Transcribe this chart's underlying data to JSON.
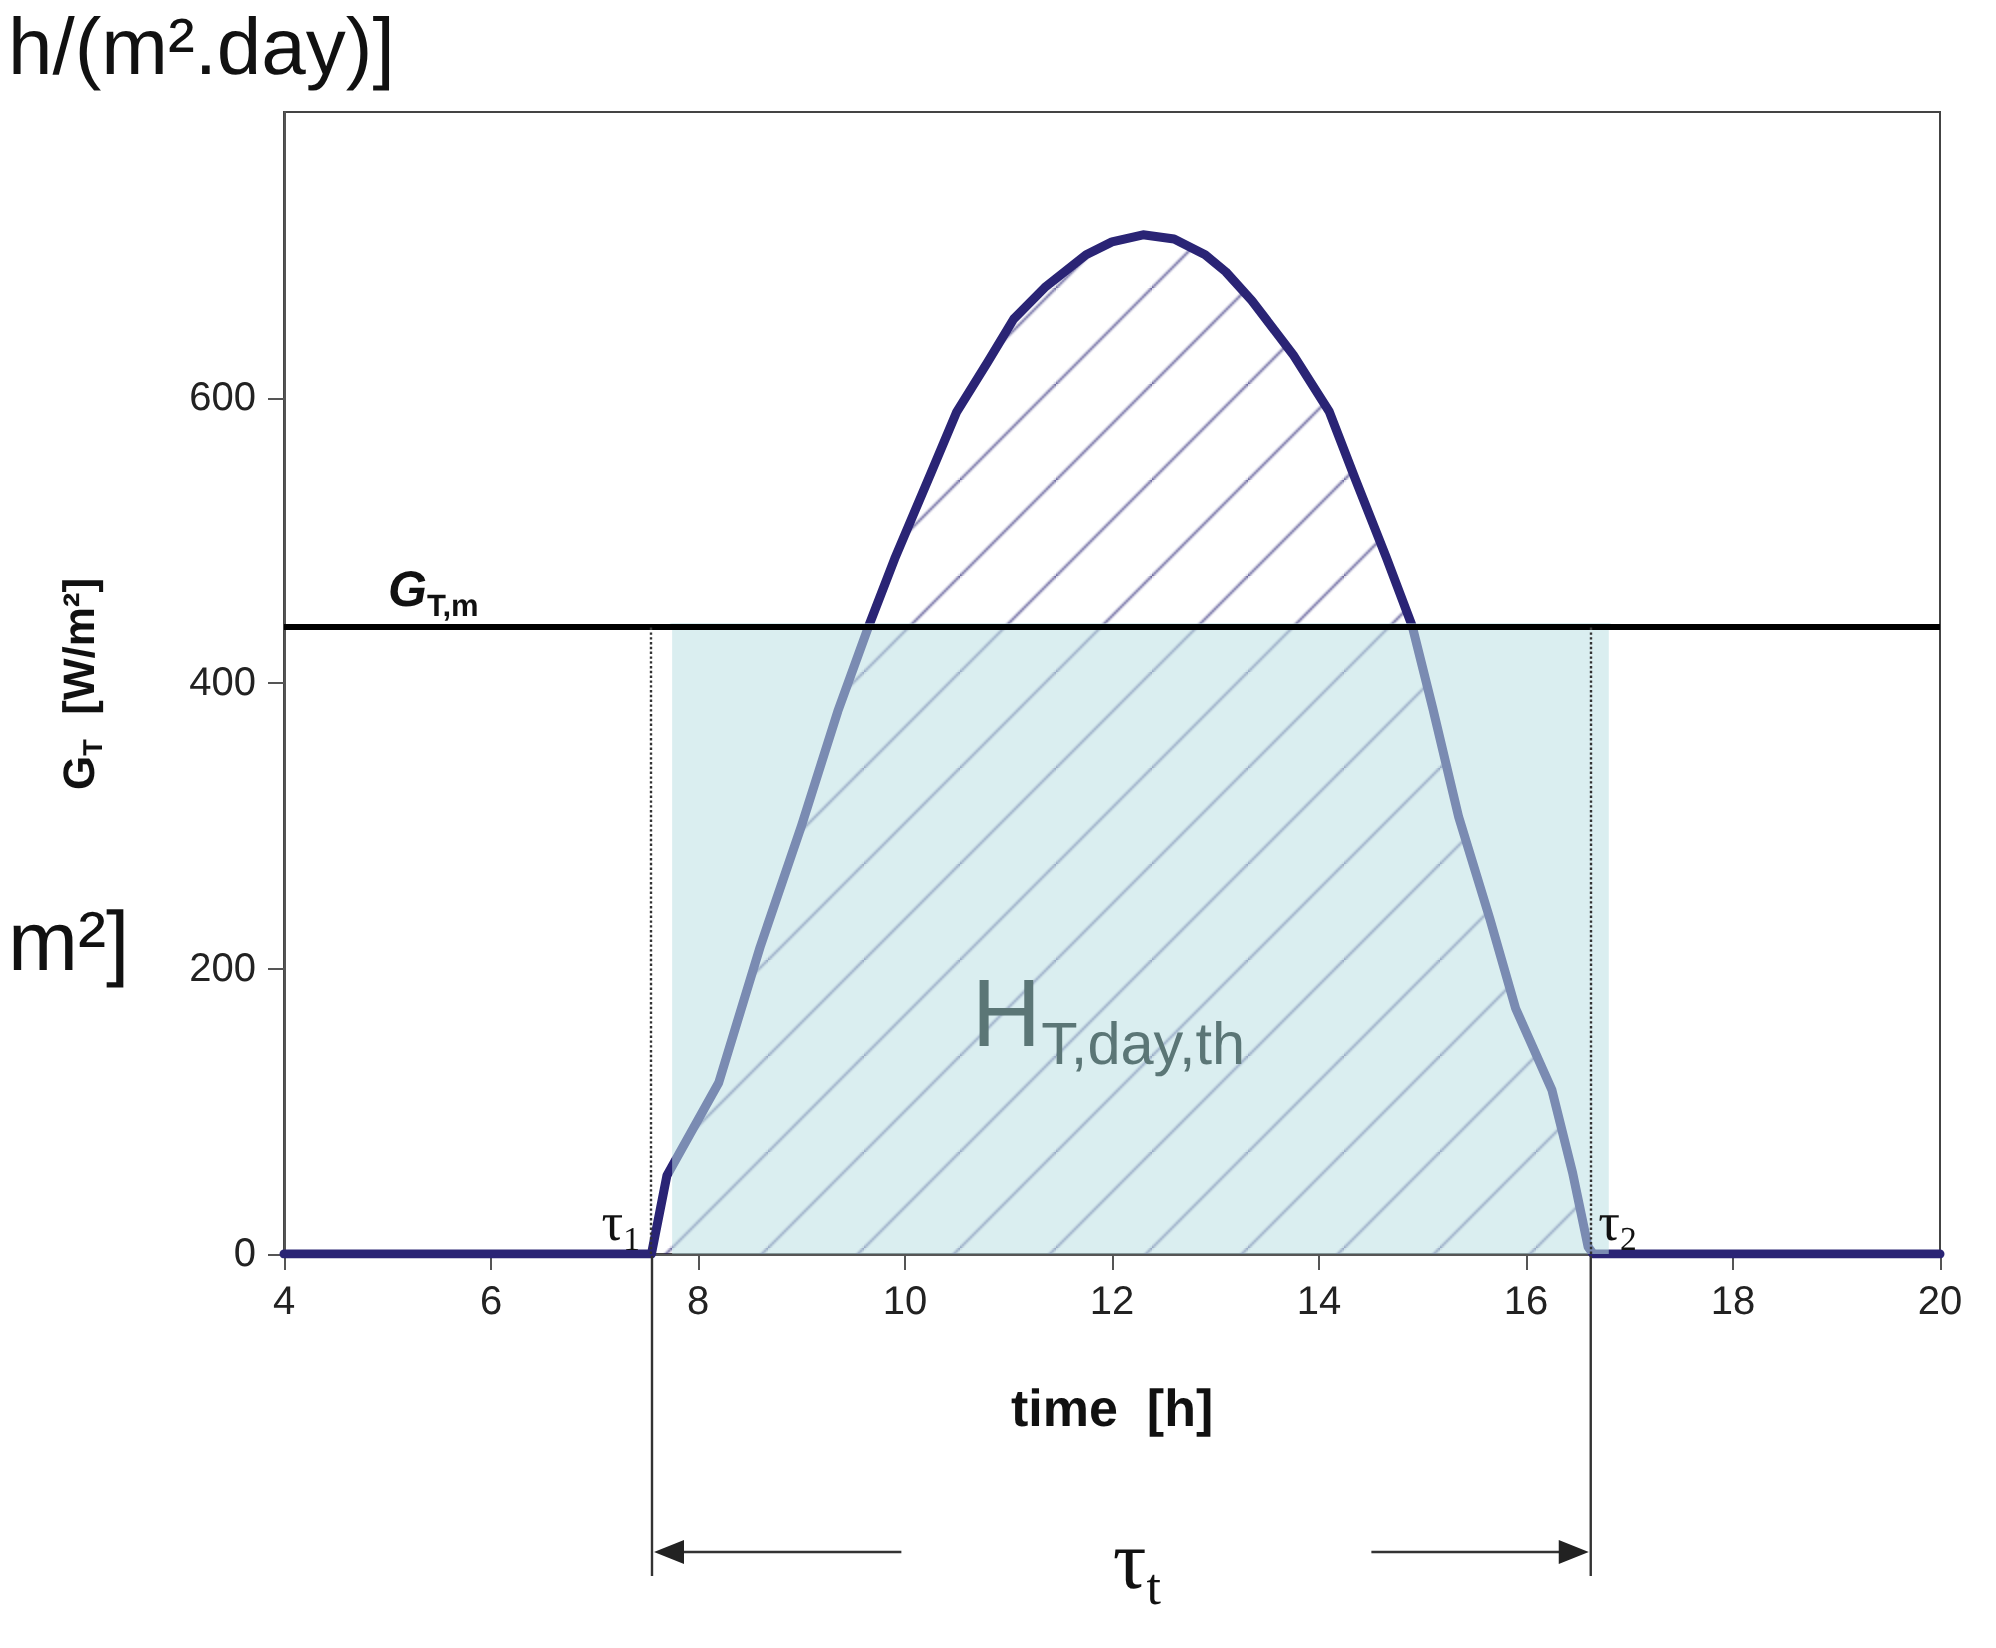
{
  "chart_data": {
    "type": "area",
    "xlabel": "time  [h]",
    "ylabel": "G$_{T}$  [W/m²]",
    "xlim": [
      4,
      20
    ],
    "xticks": [
      4,
      6,
      8,
      10,
      12,
      14,
      16,
      18,
      20
    ],
    "ylim": [
      0,
      800
    ],
    "yticks": [
      0,
      200,
      400,
      600
    ],
    "series": [
      {
        "color": "#2a2475",
        "x": [
          4,
          7.55,
          7.7,
          8.2,
          8.6,
          9.0,
          9.35,
          9.65,
          9.9,
          10.25,
          10.5,
          10.8,
          11.05,
          11.35,
          11.75,
          12.0,
          12.3,
          12.6,
          12.9,
          13.1,
          13.35,
          13.75,
          14.1,
          14.35,
          14.65,
          14.9,
          15.1,
          15.35,
          15.65,
          15.9,
          16.25,
          16.45,
          16.6,
          16.65,
          20
        ],
        "values": [
          0,
          0,
          55,
          120,
          215,
          300,
          380,
          440,
          487,
          547,
          590,
          625,
          655,
          677,
          700,
          709,
          714,
          711,
          700,
          688,
          668,
          630,
          590,
          543,
          488,
          440,
          382,
          306,
          235,
          172,
          115,
          57,
          5,
          0,
          0
        ]
      },
      {
        "color": "#daeef0",
        "x": [
          7.75,
          16.8
        ],
        "values": [
          440,
          440
        ]
      }
    ],
    "ref_lines": [
      {
        "axis": "y",
        "value": 440,
        "label": "G$_{T,m}$",
        "color": "#000000"
      },
      {
        "axis": "x",
        "value": 7.55,
        "label": "τ$_{1}$",
        "line_style": "dotted",
        "color": "#333333"
      },
      {
        "axis": "x",
        "value": 16.62,
        "label": "τ$_{2}$",
        "line_style": "dotted",
        "color": "#333333"
      }
    ],
    "annotations": [
      "H$_{T,day,th}$",
      "τ$_{t}$",
      "h/(m².day)]",
      "m²]"
    ]
  }
}
